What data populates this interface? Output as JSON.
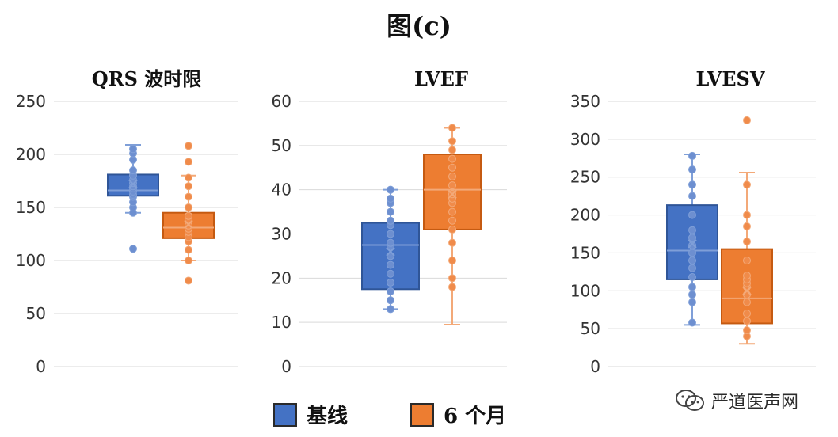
{
  "figure": {
    "title": "图(c)",
    "colors": {
      "baseline": "#4472C4",
      "six_month": "#ED7D31"
    }
  },
  "legend": {
    "baseline_label": "基线",
    "six_month_label": "6 个月"
  },
  "watermark": {
    "text": "严道医声网"
  },
  "chart_data": [
    {
      "type": "box",
      "title": "QRS 波时限",
      "ylim": [
        0,
        250
      ],
      "yticks": [
        0,
        50,
        100,
        150,
        200,
        250
      ],
      "grid": true,
      "series": [
        {
          "name": "基线",
          "whisker_low": 145,
          "q1": 161,
          "median": 166,
          "q3": 181,
          "whisker_high": 209,
          "mean": 172,
          "points": [
            111,
            145,
            150,
            155,
            160,
            162,
            165,
            168,
            170,
            173,
            176,
            180,
            185,
            195,
            201,
            205
          ]
        },
        {
          "name": "6 个月",
          "whisker_low": 100,
          "q1": 121,
          "median": 131,
          "q3": 145,
          "whisker_high": 180,
          "mean": 134,
          "points": [
            81,
            100,
            110,
            118,
            122,
            127,
            130,
            133,
            138,
            142,
            150,
            160,
            170,
            178,
            193,
            208
          ]
        }
      ]
    },
    {
      "type": "box",
      "title": "LVEF",
      "ylim": [
        0,
        60
      ],
      "yticks": [
        0,
        10,
        20,
        30,
        40,
        50,
        60
      ],
      "grid": true,
      "series": [
        {
          "name": "基线",
          "whisker_low": 13,
          "q1": 17.5,
          "median": 27.5,
          "q3": 32.5,
          "whisker_high": 40,
          "mean": 26,
          "points": [
            13,
            15,
            17,
            19,
            21,
            23,
            25,
            27,
            28,
            30,
            32,
            33,
            35,
            37,
            38,
            40
          ]
        },
        {
          "name": "6 个月",
          "whisker_low": 9.5,
          "q1": 31,
          "median": 40,
          "q3": 48,
          "whisker_high": 54,
          "mean": 39,
          "points": [
            18,
            20,
            24,
            28,
            31,
            33,
            35,
            37,
            38,
            39,
            41,
            43,
            45,
            47,
            49,
            51,
            54
          ]
        }
      ]
    },
    {
      "type": "box",
      "title": "LVESV",
      "ylim": [
        0,
        350
      ],
      "yticks": [
        0,
        50,
        100,
        150,
        200,
        250,
        300,
        350
      ],
      "grid": true,
      "series": [
        {
          "name": "基线",
          "whisker_low": 55,
          "q1": 115,
          "median": 153,
          "q3": 213,
          "whisker_high": 280,
          "mean": 162,
          "points": [
            58,
            85,
            95,
            105,
            118,
            130,
            140,
            150,
            160,
            170,
            180,
            200,
            225,
            240,
            260,
            278
          ]
        },
        {
          "name": "6 个月",
          "whisker_low": 30,
          "q1": 57,
          "median": 90,
          "q3": 155,
          "whisker_high": 256,
          "mean": 100,
          "points": [
            40,
            48,
            60,
            70,
            85,
            95,
            105,
            110,
            115,
            120,
            140,
            165,
            185,
            200,
            240,
            325
          ]
        }
      ]
    }
  ]
}
